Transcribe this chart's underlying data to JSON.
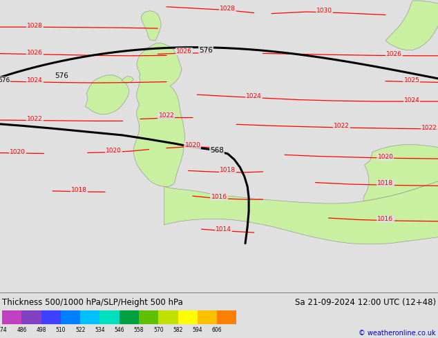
{
  "title": "Thickness 500/1000 hPa/SLP/Height 500 hPa",
  "date_str": "Sa 21-09-2024 12:00 UTC (12+48)",
  "copyright": "© weatheronline.co.uk",
  "bg_color": "#e0e0e0",
  "land_color": "#c8f0a0",
  "border_color": "#999999",
  "slp_color": "#ff0000",
  "ht_color": "#000000",
  "colorbar_values": [
    474,
    486,
    498,
    510,
    522,
    534,
    546,
    558,
    570,
    582,
    594,
    606
  ],
  "colorbar_colors": [
    "#c040c0",
    "#8040c0",
    "#4040ff",
    "#0080ff",
    "#00c0ff",
    "#00e0c0",
    "#00a040",
    "#60c000",
    "#c0e000",
    "#ffff00",
    "#ffc000",
    "#ff8000"
  ],
  "title_fontsize": 8.5,
  "label_fontsize": 6.5,
  "slp_lw": 0.9,
  "ht_lw": 2.2
}
